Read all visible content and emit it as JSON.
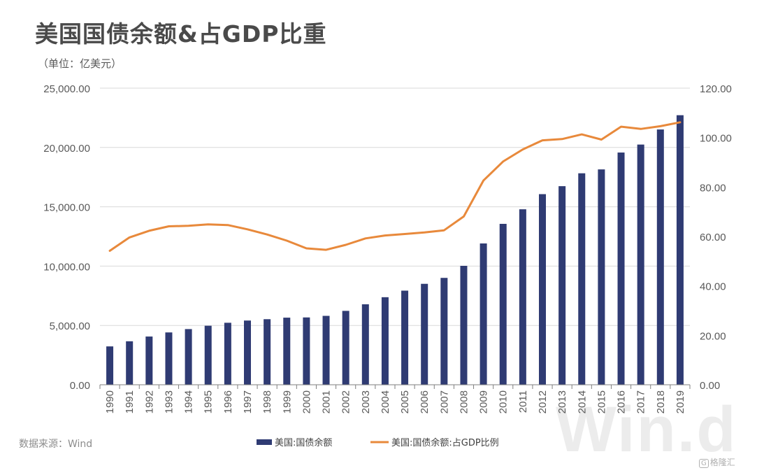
{
  "header": {
    "title": "美国国债余额&占GDP比重",
    "subtitle": "（单位：亿美元）",
    "source": "数据来源：Wind"
  },
  "watermark": "Win.d",
  "corner_logo": {
    "mark": "G",
    "text": "格隆汇"
  },
  "colors": {
    "bar": "#2f3b73",
    "line": "#e8893b",
    "grid": "#d9d9d9",
    "axis": "#7f7f7f"
  },
  "chart_data": {
    "type": "bar",
    "title": "美国国债余额&占GDP比重",
    "subtitle": "（单位：亿美元）",
    "categories": [
      "1990",
      "1991",
      "1992",
      "1993",
      "1994",
      "1995",
      "1996",
      "1997",
      "1998",
      "1999",
      "2000",
      "2001",
      "2002",
      "2003",
      "2004",
      "2005",
      "2006",
      "2007",
      "2008",
      "2009",
      "2010",
      "2011",
      "2012",
      "2013",
      "2014",
      "2015",
      "2016",
      "2017",
      "2018",
      "2019"
    ],
    "series": [
      {
        "name": "美国:国债余额",
        "type": "bar",
        "axis": "left",
        "values": [
          3233,
          3665,
          4065,
          4411,
          4693,
          4974,
          5225,
          5413,
          5526,
          5656,
          5674,
          5807,
          6228,
          6783,
          7379,
          7933,
          8507,
          9008,
          10025,
          11910,
          13562,
          14790,
          16066,
          16738,
          17824,
          18151,
          19573,
          20245,
          21516,
          22719
        ]
      },
      {
        "name": "美国:国债余额:占GDP比例",
        "type": "line",
        "axis": "right",
        "values": [
          54.2,
          59.6,
          62.3,
          64.1,
          64.3,
          64.9,
          64.6,
          62.9,
          60.8,
          58.3,
          55.2,
          54.6,
          56.6,
          59.2,
          60.4,
          61.0,
          61.6,
          62.5,
          68.1,
          82.6,
          90.3,
          95.2,
          98.9,
          99.4,
          101.3,
          99.2,
          104.4,
          103.5,
          104.6,
          106.2
        ]
      }
    ],
    "yleft": {
      "ticks": [
        "0.00",
        "5,000.00",
        "10,000.00",
        "15,000.00",
        "20,000.00",
        "25,000.00"
      ],
      "lim": [
        0,
        25000
      ]
    },
    "yright": {
      "ticks": [
        "0.00",
        "20.00",
        "40.00",
        "60.00",
        "80.00",
        "100.00",
        "120.00"
      ],
      "lim": [
        0,
        120
      ]
    },
    "grid": "horizontal",
    "legend": "bottom"
  }
}
